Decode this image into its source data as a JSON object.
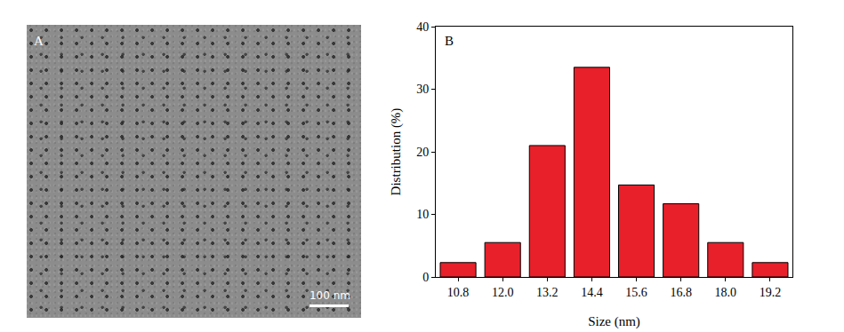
{
  "image_panel": {
    "panel_label": "A",
    "scale_bar": "100 nm"
  },
  "chart_data": {
    "type": "bar",
    "annotations": [
      "B"
    ],
    "categories": [
      "10.8",
      "12.0",
      "13.2",
      "14.4",
      "15.6",
      "16.8",
      "18.0",
      "19.2"
    ],
    "values": [
      2.3,
      5.5,
      21,
      33.5,
      14.7,
      11.7,
      5.5,
      2.3
    ],
    "color": "#e8202a",
    "x_label": "Size (nm)",
    "y_label": "Distribution (%)",
    "ylim": [
      0,
      40
    ],
    "yticks": [
      0,
      10,
      20,
      30,
      40
    ],
    "grid": false
  }
}
